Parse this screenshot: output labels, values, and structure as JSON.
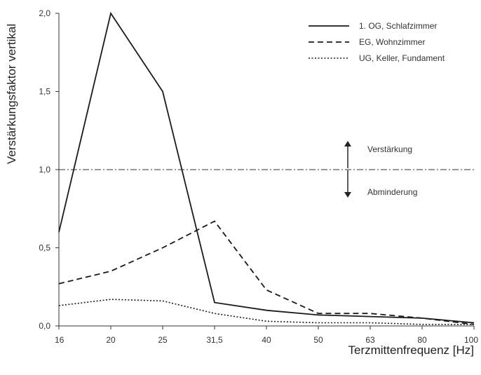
{
  "chart_data": {
    "type": "line",
    "title": "",
    "xlabel": "Terzmittenfrequenz [Hz]",
    "ylabel": "Verstärkungsfaktor vertikal",
    "categories": [
      "16",
      "20",
      "25",
      "31,5",
      "40",
      "50",
      "63",
      "80",
      "100"
    ],
    "y_ticks": [
      "0,0",
      "0,5",
      "1,0",
      "1,5",
      "2,0"
    ],
    "ylim": [
      0,
      2.0
    ],
    "grid": false,
    "legend_position": "top-right",
    "series": [
      {
        "name": "1. OG, Schlafzimmer",
        "style": "solid",
        "values": [
          0.6,
          2.0,
          1.5,
          0.15,
          0.1,
          0.07,
          0.06,
          0.05,
          0.02
        ]
      },
      {
        "name": "EG, Wohnzimmer",
        "style": "dashed",
        "values": [
          0.27,
          0.35,
          0.5,
          0.67,
          0.23,
          0.08,
          0.08,
          0.05,
          0.01
        ]
      },
      {
        "name": "UG, Keller, Fundament",
        "style": "dotted",
        "values": [
          0.13,
          0.17,
          0.16,
          0.08,
          0.03,
          0.02,
          0.02,
          0.01,
          0.01
        ]
      }
    ],
    "reference_line": {
      "value": 1.0,
      "style": "dash-dot"
    },
    "annotations": {
      "up": "Verstärkung",
      "down": "Abminderung"
    }
  }
}
